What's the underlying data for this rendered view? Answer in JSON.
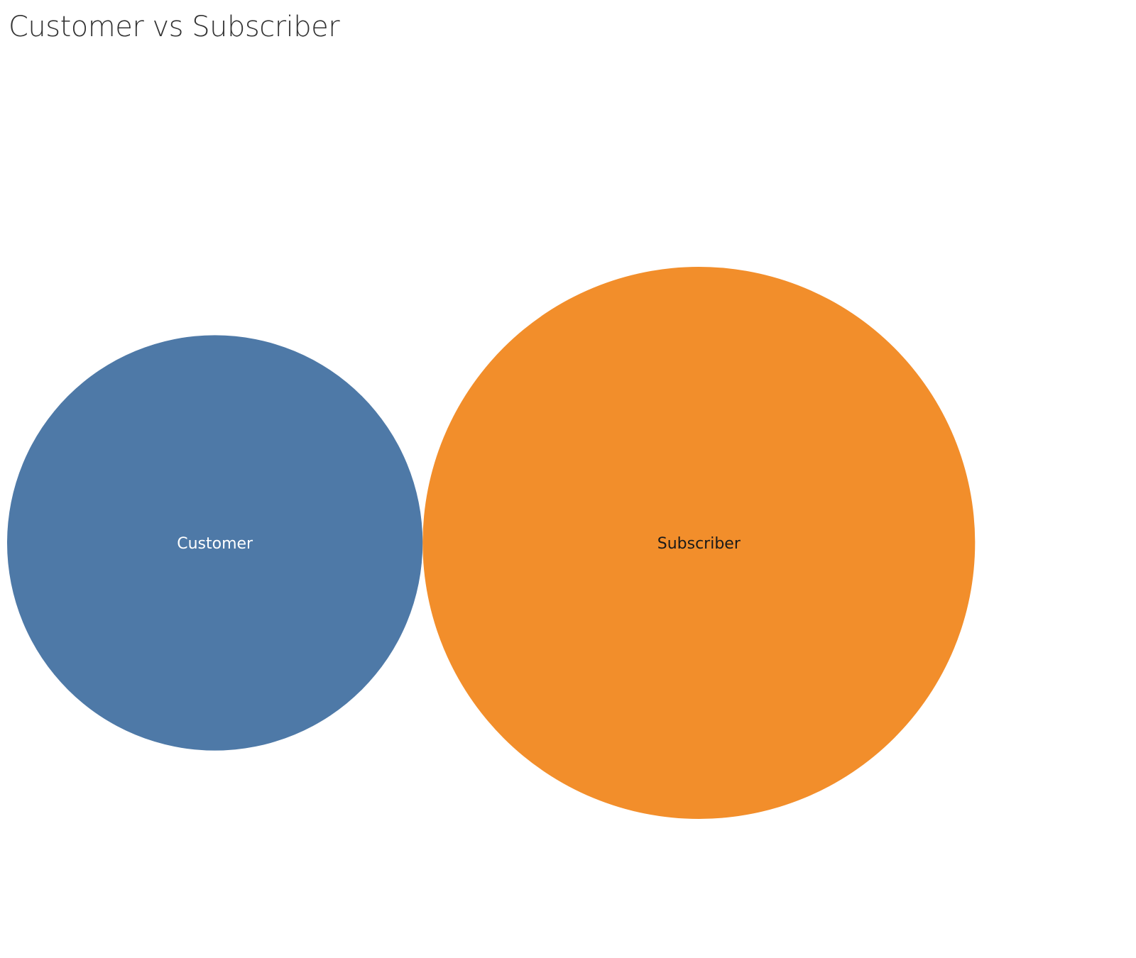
{
  "chart_data": {
    "type": "bubble",
    "title": "Customer vs Subscriber",
    "categories": [
      "Customer",
      "Subscriber"
    ],
    "relative_size": [
      0.566,
      1.0
    ],
    "colors": [
      "#4e79a7",
      "#f28e2b"
    ],
    "label_colors": [
      "#ffffff",
      "#1a1a1a"
    ],
    "legend": "none",
    "grid": false
  }
}
